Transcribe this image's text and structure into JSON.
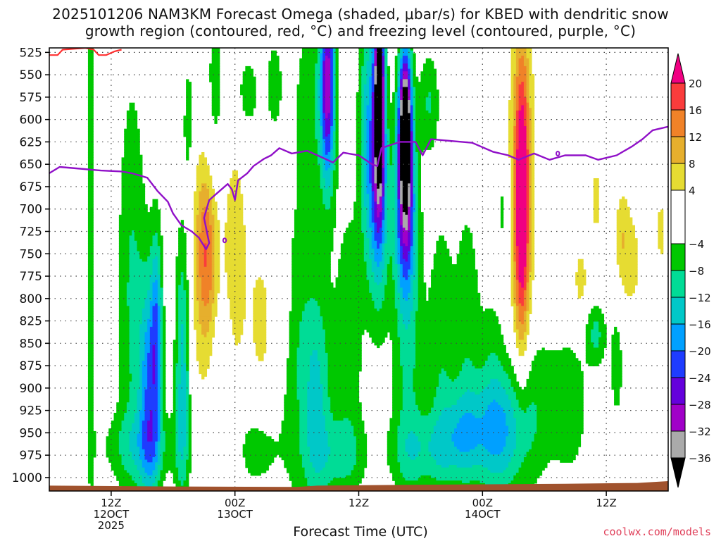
{
  "title_line1": "2025101206 NAM3KM Forecast Omega (shaded, μbar/s) for KBED with dendritic snow",
  "title_line2": "growth region (contoured, red, °C) and freezing level (contoured, purple, °C)",
  "credit": "coolwx.com/models",
  "chart_data": {
    "type": "heatmap",
    "title": "2025101206 NAM3KM Forecast Omega (shaded, μbar/s) for KBED with dendritic snow growth region (contoured, red, °C) and freezing level (contoured, purple, °C)",
    "xlabel": "Forecast Time (UTC)",
    "ylabel": "",
    "y_axis": {
      "scale": "pressure (hPa), increasing downward",
      "range": [
        520,
        1015
      ],
      "ticks": [
        525,
        550,
        575,
        600,
        625,
        650,
        675,
        700,
        725,
        750,
        775,
        800,
        825,
        850,
        875,
        900,
        925,
        950,
        975,
        1000
      ]
    },
    "x_axis": {
      "units": "forecast hours from 2025-10-12 06Z",
      "range": [
        0,
        60
      ],
      "ticks": [
        {
          "hour": 6,
          "label": [
            "12Z",
            "12OCT",
            "2025"
          ]
        },
        {
          "hour": 18,
          "label": [
            "00Z",
            "13OCT"
          ]
        },
        {
          "hour": 30,
          "label": [
            "12Z",
            ""
          ]
        },
        {
          "hour": 42,
          "label": [
            "00Z",
            "14OCT"
          ]
        },
        {
          "hour": 54,
          "label": [
            "12Z",
            ""
          ]
        }
      ]
    },
    "grid": true,
    "colorbar": {
      "position": "right",
      "boundaries": [
        -40,
        -36,
        -32,
        -28,
        -24,
        -20,
        -16,
        -12,
        -8,
        -4,
        4,
        8,
        12,
        16,
        20,
        24
      ],
      "tick_labels": [
        "20",
        "16",
        "12",
        "8",
        "4",
        "−4",
        "−8",
        "−12",
        "−16",
        "−20",
        "−24",
        "−28",
        "−32",
        "−36"
      ],
      "tick_values": [
        20,
        16,
        12,
        8,
        4,
        -4,
        -8,
        -12,
        -16,
        -20,
        -24,
        -28,
        -32,
        -36
      ],
      "colors": [
        "#000000",
        "#aaaaaa",
        "#a000c8",
        "#6400dc",
        "#1e3cff",
        "#00a0ff",
        "#00c8c8",
        "#00dc96",
        "#00c800",
        "#ffffff",
        "#e6dc32",
        "#e6af2d",
        "#f08228",
        "#fa3c3c",
        "#f00082"
      ]
    },
    "omega_features": [
      {
        "t": 4.0,
        "p": 735,
        "st": 0.3,
        "sp": 250,
        "v": -6.5
      },
      {
        "t": 8.0,
        "p": 790,
        "st": 1.0,
        "sp": 170,
        "v": -8.5
      },
      {
        "t": 9.7,
        "p": 905,
        "st": 0.7,
        "sp": 90,
        "v": -18
      },
      {
        "t": 10.4,
        "p": 830,
        "st": 0.4,
        "sp": 80,
        "v": -14
      },
      {
        "t": 12.9,
        "p": 880,
        "st": 0.5,
        "sp": 110,
        "v": -14
      },
      {
        "t": 9.0,
        "p": 965,
        "st": 3.0,
        "sp": 30,
        "v": -7.5
      },
      {
        "t": 13.5,
        "p": 600,
        "st": 0.4,
        "sp": 55,
        "v": -6
      },
      {
        "t": 15.2,
        "p": 770,
        "st": 1.0,
        "sp": 110,
        "v": 9
      },
      {
        "t": 15.3,
        "p": 745,
        "st": 0.7,
        "sp": 60,
        "v": 9
      },
      {
        "t": 18.0,
        "p": 800,
        "st": 0.8,
        "sp": 110,
        "v": 10
      },
      {
        "t": 17.3,
        "p": 870,
        "st": 1.3,
        "sp": 75,
        "v": -6.5
      },
      {
        "t": 20.0,
        "p": 970,
        "st": 1.5,
        "sp": 30,
        "v": -6
      },
      {
        "t": 20.5,
        "p": 825,
        "st": 0.9,
        "sp": 60,
        "v": 6
      },
      {
        "t": 22.6,
        "p": 800,
        "st": 0.5,
        "sp": 50,
        "v": 6
      },
      {
        "t": 16.0,
        "p": 590,
        "st": 0.7,
        "sp": 100,
        "v": -6.5
      },
      {
        "t": 19.2,
        "p": 570,
        "st": 0.9,
        "sp": 35,
        "v": -6
      },
      {
        "t": 21.8,
        "p": 560,
        "st": 0.6,
        "sp": 40,
        "v": -6
      },
      {
        "t": 24.0,
        "p": 860,
        "st": 1.4,
        "sp": 130,
        "v": -6.5
      },
      {
        "t": 26.0,
        "p": 910,
        "st": 1.0,
        "sp": 90,
        "v": -11
      },
      {
        "t": 25.5,
        "p": 580,
        "st": 1.2,
        "sp": 80,
        "v": -7
      },
      {
        "t": 27.0,
        "p": 560,
        "st": 0.5,
        "sp": 80,
        "v": -28
      },
      {
        "t": 28.0,
        "p": 975,
        "st": 2.0,
        "sp": 30,
        "v": -7
      },
      {
        "t": 29.0,
        "p": 850,
        "st": 1.0,
        "sp": 120,
        "v": -7
      },
      {
        "t": 31.0,
        "p": 610,
        "st": 0.7,
        "sp": 110,
        "v": -14
      },
      {
        "t": 32.0,
        "p": 570,
        "st": 0.35,
        "sp": 80,
        "v": -40
      },
      {
        "t": 32.0,
        "p": 690,
        "st": 0.7,
        "sp": 90,
        "v": -16
      },
      {
        "t": 34.5,
        "p": 600,
        "st": 0.45,
        "sp": 60,
        "v": -40
      },
      {
        "t": 34.5,
        "p": 700,
        "st": 0.7,
        "sp": 70,
        "v": -24
      },
      {
        "t": 34.8,
        "p": 860,
        "st": 1.1,
        "sp": 130,
        "v": -8.5
      },
      {
        "t": 36.8,
        "p": 580,
        "st": 0.7,
        "sp": 40,
        "v": -8
      },
      {
        "t": 36.5,
        "p": 970,
        "st": 2.5,
        "sp": 30,
        "v": -8
      },
      {
        "t": 38.0,
        "p": 850,
        "st": 0.9,
        "sp": 110,
        "v": -7
      },
      {
        "t": 40.5,
        "p": 950,
        "st": 1.8,
        "sp": 40,
        "v": -12
      },
      {
        "t": 40.5,
        "p": 830,
        "st": 0.9,
        "sp": 110,
        "v": -6.5
      },
      {
        "t": 43.0,
        "p": 910,
        "st": 1.0,
        "sp": 90,
        "v": -7
      },
      {
        "t": 44.5,
        "p": 950,
        "st": 1.5,
        "sp": 50,
        "v": -12
      },
      {
        "t": 45.8,
        "p": 690,
        "st": 0.5,
        "sp": 110,
        "v": 24
      },
      {
        "t": 45.8,
        "p": 680,
        "st": 1.2,
        "sp": 170,
        "v": 6
      },
      {
        "t": 47.0,
        "p": 915,
        "st": 1.5,
        "sp": 70,
        "v": -7
      },
      {
        "t": 44.0,
        "p": 700,
        "st": 0.5,
        "sp": 40,
        "v": -6
      },
      {
        "t": 50.5,
        "p": 920,
        "st": 1.3,
        "sp": 60,
        "v": -6.5
      },
      {
        "t": 51.5,
        "p": 780,
        "st": 0.5,
        "sp": 30,
        "v": 6
      },
      {
        "t": 53.0,
        "p": 690,
        "st": 0.4,
        "sp": 30,
        "v": 6
      },
      {
        "t": 55.5,
        "p": 730,
        "st": 0.5,
        "sp": 40,
        "v": 6
      },
      {
        "t": 53.0,
        "p": 840,
        "st": 0.7,
        "sp": 25,
        "v": -9
      },
      {
        "t": 56.5,
        "p": 760,
        "st": 0.8,
        "sp": 50,
        "v": 5
      },
      {
        "t": 59.3,
        "p": 725,
        "st": 0.4,
        "sp": 40,
        "v": 5
      },
      {
        "t": 55.0,
        "p": 875,
        "st": 0.5,
        "sp": 50,
        "v": -6
      }
    ],
    "freezing_level": [
      [
        0,
        660
      ],
      [
        1,
        653
      ],
      [
        3,
        655
      ],
      [
        5,
        657
      ],
      [
        7,
        658
      ],
      [
        8,
        660
      ],
      [
        9.5,
        665
      ],
      [
        10.5,
        680
      ],
      [
        11.5,
        692
      ],
      [
        12,
        705
      ],
      [
        12.8,
        718
      ],
      [
        13.8,
        725
      ],
      [
        14.5,
        732
      ],
      [
        15.2,
        745
      ],
      [
        15.5,
        738
      ],
      [
        15,
        710
      ],
      [
        15.5,
        690
      ],
      [
        16.5,
        680
      ],
      [
        17.3,
        672
      ],
      [
        17.7,
        678
      ],
      [
        18,
        690
      ],
      [
        18.3,
        668
      ],
      [
        19.2,
        660
      ],
      [
        19.8,
        652
      ],
      [
        20.8,
        644
      ],
      [
        21.5,
        640
      ],
      [
        22.3,
        632
      ],
      [
        23.5,
        638
      ],
      [
        25,
        635
      ],
      [
        26,
        640
      ],
      [
        27.5,
        648
      ],
      [
        28.5,
        637
      ],
      [
        30,
        640
      ],
      [
        31.3,
        650
      ],
      [
        31.8,
        652
      ],
      [
        32.2,
        632
      ],
      [
        34,
        625
      ],
      [
        35.5,
        625
      ],
      [
        36.2,
        640
      ],
      [
        37,
        622
      ],
      [
        39,
        624
      ],
      [
        41,
        626
      ],
      [
        43,
        636
      ],
      [
        44.5,
        640
      ],
      [
        45.5,
        645
      ],
      [
        47,
        638
      ],
      [
        48.5,
        645
      ],
      [
        50,
        640
      ],
      [
        51.5,
        640
      ],
      [
        52,
        640
      ],
      [
        53.2,
        645
      ],
      [
        55,
        640
      ],
      [
        56.5,
        630
      ],
      [
        57.5,
        622
      ],
      [
        58.5,
        612
      ],
      [
        60,
        608
      ]
    ],
    "freezing_level_islands": [
      [
        17,
        735
      ],
      [
        49.3,
        638
      ]
    ],
    "snow_growth_region_contour": [
      [
        0,
        528
      ],
      [
        0.8,
        528
      ],
      [
        1.3,
        522
      ],
      [
        3.5,
        520
      ],
      [
        4.3,
        522
      ],
      [
        4.8,
        528
      ],
      [
        5.5,
        528
      ],
      [
        6.3,
        524
      ],
      [
        7,
        522
      ]
    ],
    "surface_pressure": [
      [
        0,
        1009
      ],
      [
        12,
        1010
      ],
      [
        24,
        1010.5
      ],
      [
        26,
        1009
      ],
      [
        36,
        1008
      ],
      [
        50,
        1007
      ],
      [
        57,
        1006
      ],
      [
        60,
        1004
      ]
    ]
  }
}
